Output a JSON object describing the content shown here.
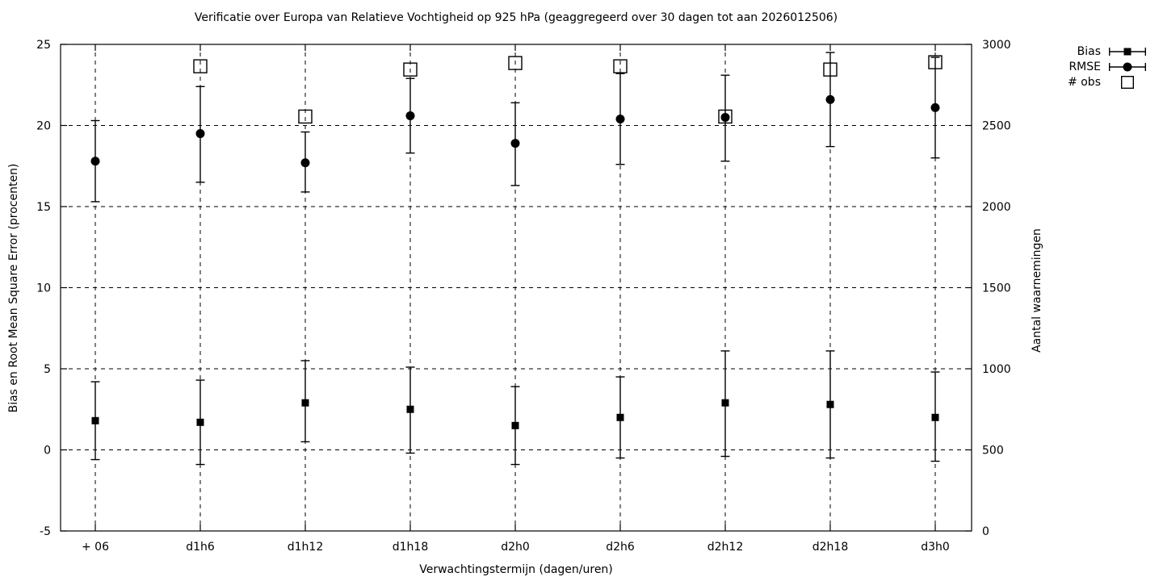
{
  "colors": {
    "foreground": "#000000",
    "background": "#ffffff"
  },
  "chart_data": {
    "type": "scatter",
    "title": "Verificatie over Europa van Relatieve Vochtigheid op 925 hPa (geaggregeerd over 30 dagen tot aan 2026012506)",
    "xlabel": "Verwachtingstermijn (dagen/uren)",
    "ylabel_left": "Bias en Root Mean Square Error (procenten)",
    "ylabel_right": "Aantal waarnemingen",
    "ylim_left": [
      -5,
      25
    ],
    "ylim_right": [
      0,
      3000
    ],
    "yticks_left": [
      25,
      20,
      15,
      10,
      5,
      0,
      -5
    ],
    "yticks_right": [
      3000,
      2500,
      2000,
      1500,
      1000,
      500,
      0
    ],
    "grid": "dashed",
    "legend_position": "top-right-outside",
    "categories": [
      "+ 06",
      "d1h6",
      "d1h12",
      "d1h18",
      "d2h0",
      "d2h6",
      "d2h12",
      "d2h18",
      "d3h0"
    ],
    "series": [
      {
        "name": "Bias",
        "axis": "left",
        "marker": "filled-square",
        "values": [
          1.8,
          1.7,
          2.9,
          2.5,
          1.5,
          2.0,
          2.9,
          2.8,
          2.0
        ],
        "err_low": [
          -0.6,
          -0.9,
          0.5,
          -0.2,
          -0.9,
          -0.5,
          -0.4,
          -0.5,
          -0.7
        ],
        "err_high": [
          4.2,
          4.3,
          5.5,
          5.1,
          3.9,
          4.5,
          6.1,
          6.1,
          4.8
        ]
      },
      {
        "name": "RMSE",
        "axis": "left",
        "marker": "filled-circle",
        "values": [
          17.8,
          19.5,
          17.7,
          20.6,
          18.9,
          20.4,
          20.5,
          21.6,
          21.1
        ],
        "err_low": [
          15.3,
          16.5,
          15.9,
          18.3,
          16.3,
          17.6,
          17.8,
          18.7,
          18.0
        ],
        "err_high": [
          20.3,
          22.4,
          19.6,
          22.9,
          21.4,
          23.2,
          23.1,
          24.5,
          24.2
        ]
      },
      {
        "name": "# obs",
        "axis": "right",
        "marker": "open-square",
        "values": [
          null,
          2865,
          2555,
          2845,
          2885,
          2865,
          2555,
          2845,
          2890
        ]
      }
    ]
  }
}
